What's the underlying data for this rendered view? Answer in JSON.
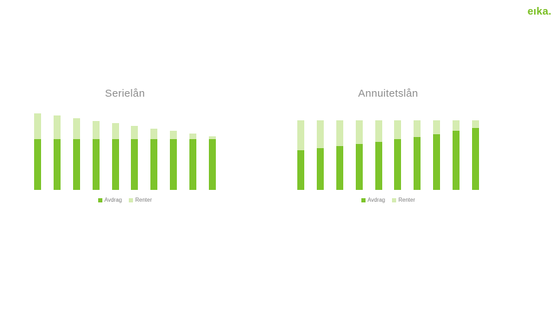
{
  "slide": {
    "background_color": "#FFFFFF"
  },
  "logo": {
    "text": "eıka.",
    "color": "#78BE20"
  },
  "styles": {
    "avdrag_color": "#7DC42B",
    "renter_color": "#D5ECB1",
    "title_text_color": "#8C8C8C",
    "legend_text_color": "#7F7F7F"
  },
  "chart_data": [
    {
      "id": "serielan",
      "type": "bar",
      "stacked": true,
      "title": "Serielån",
      "categories": [
        1,
        2,
        3,
        4,
        5,
        6,
        7,
        8,
        9,
        10
      ],
      "categories_visible": false,
      "series": [
        {
          "name": "Avdrag",
          "color": "#7DC42B",
          "values": [
            100,
            100,
            100,
            100,
            100,
            100,
            100,
            100,
            100,
            100
          ]
        },
        {
          "name": "Renter",
          "color": "#D5ECB1",
          "values": [
            50,
            45,
            40,
            35,
            30,
            25,
            20,
            15,
            10,
            5
          ]
        }
      ],
      "xlabel": "",
      "ylabel": "",
      "ylim": [
        0,
        151
      ],
      "axes_visible": false,
      "gridlines": false,
      "legend_position": "bottom"
    },
    {
      "id": "annuitetslan",
      "type": "bar",
      "stacked": true,
      "title": "Annuitetslån",
      "categories": [
        1,
        2,
        3,
        4,
        5,
        6,
        7,
        8,
        9,
        10
      ],
      "categories_visible": false,
      "series": [
        {
          "name": "Avdrag",
          "color": "#7DC42B",
          "values": [
            78,
            82,
            86,
            90,
            94,
            99,
            104,
            109,
            115,
            121
          ]
        },
        {
          "name": "Renter",
          "color": "#D5ECB1",
          "values": [
            58,
            54,
            50,
            46,
            42,
            37,
            32,
            27,
            21,
            15
          ]
        }
      ],
      "xlabel": "",
      "ylabel": "",
      "ylim": [
        0,
        151
      ],
      "axes_visible": false,
      "gridlines": false,
      "legend_position": "bottom"
    }
  ]
}
